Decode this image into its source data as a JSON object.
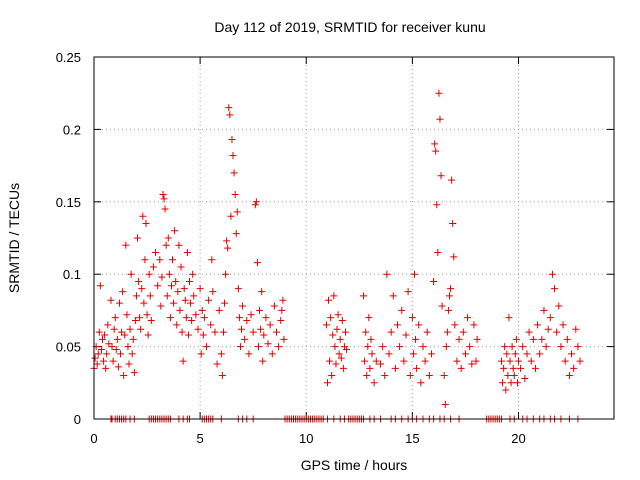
{
  "chart_data": {
    "type": "scatter",
    "title": "Day 112 of 2019, SRMTID for receiver kunu",
    "xlabel": "GPS time / hours",
    "ylabel": "SRMTID / TECUs",
    "xlim": [
      0,
      24.5
    ],
    "ylim": [
      0,
      0.25
    ],
    "xticks": [
      0,
      5,
      10,
      15,
      20
    ],
    "xtick_labels": [
      "0",
      "5",
      "10",
      "15",
      "20"
    ],
    "yticks": [
      0,
      0.05,
      0.1,
      0.15,
      0.2,
      0.25
    ],
    "ytick_labels": [
      "0",
      "0.05",
      "0.1",
      "0.15",
      "0.2",
      "0.25"
    ],
    "grid": true,
    "marker": "+",
    "color": "#e00000",
    "series": [
      {
        "name": "SRMTID",
        "points": [
          [
            0.0,
            0.035
          ],
          [
            0.05,
            0.042
          ],
          [
            0.1,
            0.05
          ],
          [
            0.15,
            0.038
          ],
          [
            0.2,
            0.045
          ],
          [
            0.25,
            0.06
          ],
          [
            0.3,
            0.092
          ],
          [
            0.35,
            0.048
          ],
          [
            0.4,
            0.055
          ],
          [
            0.45,
            0.04
          ],
          [
            0.5,
            0.058
          ],
          [
            0.55,
            0.035
          ],
          [
            0.6,
            0.045
          ],
          [
            0.65,
            0.065
          ],
          [
            0.7,
            0.052
          ],
          [
            0.8,
            0.082
          ],
          [
            0.85,
            0.05
          ],
          [
            0.9,
            0.04
          ],
          [
            0.95,
            0.062
          ],
          [
            1.0,
            0.07
          ],
          [
            1.05,
            0.048
          ],
          [
            1.1,
            0.055
          ],
          [
            1.15,
            0.036
          ],
          [
            1.2,
            0.08
          ],
          [
            1.25,
            0.045
          ],
          [
            1.3,
            0.06
          ],
          [
            1.35,
            0.088
          ],
          [
            1.4,
            0.03
          ],
          [
            1.45,
            0.058
          ],
          [
            1.5,
            0.12
          ],
          [
            1.55,
            0.072
          ],
          [
            1.6,
            0.05
          ],
          [
            1.65,
            0.038
          ],
          [
            1.7,
            0.062
          ],
          [
            1.75,
            0.1
          ],
          [
            1.8,
            0.045
          ],
          [
            1.85,
            0.055
          ],
          [
            1.9,
            0.032
          ],
          [
            1.95,
            0.068
          ],
          [
            2.0,
            0.085
          ],
          [
            2.05,
            0.125
          ],
          [
            2.1,
            0.095
          ],
          [
            2.15,
            0.07
          ],
          [
            2.2,
            0.062
          ],
          [
            2.25,
            0.09
          ],
          [
            2.3,
            0.14
          ],
          [
            2.35,
            0.08
          ],
          [
            2.4,
            0.11
          ],
          [
            2.45,
            0.135
          ],
          [
            2.5,
            0.072
          ],
          [
            2.55,
            0.058
          ],
          [
            2.6,
            0.1
          ],
          [
            2.65,
            0.085
          ],
          [
            2.7,
            0.068
          ],
          [
            2.8,
            0.105
          ],
          [
            2.9,
            0.115
          ],
          [
            3.0,
            0.092
          ],
          [
            3.1,
            0.11
          ],
          [
            3.15,
            0.078
          ],
          [
            3.2,
            0.098
          ],
          [
            3.25,
            0.155
          ],
          [
            3.3,
            0.152
          ],
          [
            3.35,
            0.145
          ],
          [
            3.4,
            0.12
          ],
          [
            3.45,
            0.085
          ],
          [
            3.5,
            0.125
          ],
          [
            3.55,
            0.1
          ],
          [
            3.6,
            0.07
          ],
          [
            3.65,
            0.092
          ],
          [
            3.7,
            0.11
          ],
          [
            3.75,
            0.08
          ],
          [
            3.8,
            0.13
          ],
          [
            3.85,
            0.095
          ],
          [
            3.9,
            0.065
          ],
          [
            3.95,
            0.088
          ],
          [
            4.0,
            0.12
          ],
          [
            4.05,
            0.075
          ],
          [
            4.1,
            0.105
          ],
          [
            4.15,
            0.06
          ],
          [
            4.2,
            0.04
          ],
          [
            4.25,
            0.09
          ],
          [
            4.3,
            0.082
          ],
          [
            4.35,
            0.07
          ],
          [
            4.4,
            0.115
          ],
          [
            4.45,
            0.058
          ],
          [
            4.5,
            0.095
          ],
          [
            4.55,
            0.08
          ],
          [
            4.6,
            0.068
          ],
          [
            4.65,
            0.1
          ],
          [
            4.7,
            0.085
          ],
          [
            4.8,
            0.072
          ],
          [
            4.9,
            0.062
          ],
          [
            5.0,
            0.09
          ],
          [
            5.05,
            0.045
          ],
          [
            5.1,
            0.075
          ],
          [
            5.15,
            0.058
          ],
          [
            5.2,
            0.07
          ],
          [
            5.3,
            0.05
          ],
          [
            5.4,
            0.082
          ],
          [
            5.5,
            0.065
          ],
          [
            5.55,
            0.11
          ],
          [
            5.6,
            0.088
          ],
          [
            5.7,
            0.06
          ],
          [
            5.8,
            0.038
          ],
          [
            5.9,
            0.075
          ],
          [
            6.0,
            0.045
          ],
          [
            6.05,
            0.03
          ],
          [
            6.1,
            0.06
          ],
          [
            6.15,
            0.08
          ],
          [
            6.2,
            0.1
          ],
          [
            6.25,
            0.123
          ],
          [
            6.3,
            0.118
          ],
          [
            6.35,
            0.215
          ],
          [
            6.4,
            0.21
          ],
          [
            6.45,
            0.14
          ],
          [
            6.5,
            0.193
          ],
          [
            6.55,
            0.182
          ],
          [
            6.6,
            0.17
          ],
          [
            6.65,
            0.155
          ],
          [
            6.7,
            0.128
          ],
          [
            6.75,
            0.143
          ],
          [
            6.8,
            0.09
          ],
          [
            6.85,
            0.07
          ],
          [
            6.9,
            0.05
          ],
          [
            6.95,
            0.062
          ],
          [
            7.0,
            0.078
          ],
          [
            7.1,
            0.055
          ],
          [
            7.2,
            0.068
          ],
          [
            7.3,
            0.045
          ],
          [
            7.4,
            0.072
          ],
          [
            7.5,
            0.06
          ],
          [
            7.6,
            0.148
          ],
          [
            7.65,
            0.15
          ],
          [
            7.7,
            0.108
          ],
          [
            7.75,
            0.05
          ],
          [
            7.8,
            0.075
          ],
          [
            7.85,
            0.062
          ],
          [
            7.9,
            0.088
          ],
          [
            7.95,
            0.04
          ],
          [
            8.0,
            0.058
          ],
          [
            8.1,
            0.07
          ],
          [
            8.2,
            0.052
          ],
          [
            8.3,
            0.065
          ],
          [
            8.4,
            0.045
          ],
          [
            8.5,
            0.078
          ],
          [
            8.6,
            0.06
          ],
          [
            8.7,
            0.05
          ],
          [
            8.8,
            0.068
          ],
          [
            8.85,
            0.075
          ],
          [
            8.9,
            0.082
          ],
          [
            8.95,
            0.055
          ],
          [
            10.95,
            0.065
          ],
          [
            11.0,
            0.025
          ],
          [
            11.05,
            0.082
          ],
          [
            11.1,
            0.04
          ],
          [
            11.15,
            0.07
          ],
          [
            11.2,
            0.03
          ],
          [
            11.25,
            0.058
          ],
          [
            11.3,
            0.085
          ],
          [
            11.35,
            0.05
          ],
          [
            11.4,
            0.038
          ],
          [
            11.45,
            0.062
          ],
          [
            11.5,
            0.072
          ],
          [
            11.55,
            0.045
          ],
          [
            11.6,
            0.055
          ],
          [
            11.65,
            0.042
          ],
          [
            11.7,
            0.068
          ],
          [
            11.75,
            0.035
          ],
          [
            11.8,
            0.05
          ],
          [
            11.85,
            0.06
          ],
          [
            11.9,
            0.048
          ],
          [
            12.7,
            0.085
          ],
          [
            12.75,
            0.04
          ],
          [
            12.8,
            0.06
          ],
          [
            12.85,
            0.03
          ],
          [
            12.9,
            0.05
          ],
          [
            12.95,
            0.07
          ],
          [
            13.0,
            0.035
          ],
          [
            13.05,
            0.055
          ],
          [
            13.1,
            0.045
          ],
          [
            13.2,
            0.025
          ],
          [
            13.3,
            0.04
          ],
          [
            13.5,
            0.038
          ],
          [
            13.6,
            0.05
          ],
          [
            13.7,
            0.03
          ],
          [
            13.8,
            0.1
          ],
          [
            13.9,
            0.045
          ],
          [
            14.0,
            0.06
          ],
          [
            14.1,
            0.085
          ],
          [
            14.2,
            0.035
          ],
          [
            14.3,
            0.065
          ],
          [
            14.4,
            0.05
          ],
          [
            14.5,
            0.075
          ],
          [
            14.6,
            0.04
          ],
          [
            14.7,
            0.058
          ],
          [
            14.8,
            0.088
          ],
          [
            14.9,
            0.03
          ],
          [
            15.0,
            0.07
          ],
          [
            15.05,
            0.045
          ],
          [
            15.1,
            0.1
          ],
          [
            15.15,
            0.055
          ],
          [
            15.2,
            0.035
          ],
          [
            15.3,
            0.065
          ],
          [
            15.4,
            0.025
          ],
          [
            15.5,
            0.05
          ],
          [
            15.6,
            0.04
          ],
          [
            15.7,
            0.06
          ],
          [
            15.8,
            0.03
          ],
          [
            15.9,
            0.045
          ],
          [
            16.0,
            0.095
          ],
          [
            16.05,
            0.19
          ],
          [
            16.1,
            0.185
          ],
          [
            16.15,
            0.148
          ],
          [
            16.2,
            0.115
          ],
          [
            16.25,
            0.225
          ],
          [
            16.3,
            0.207
          ],
          [
            16.35,
            0.168
          ],
          [
            16.4,
            0.078
          ],
          [
            16.5,
            0.03
          ],
          [
            16.55,
            0.01
          ],
          [
            16.6,
            0.05
          ],
          [
            16.65,
            0.06
          ],
          [
            16.7,
            0.075
          ],
          [
            16.75,
            0.085
          ],
          [
            16.8,
            0.09
          ],
          [
            16.85,
            0.165
          ],
          [
            16.9,
            0.135
          ],
          [
            16.95,
            0.112
          ],
          [
            17.0,
            0.065
          ],
          [
            17.1,
            0.04
          ],
          [
            17.2,
            0.055
          ],
          [
            17.3,
            0.035
          ],
          [
            17.4,
            0.06
          ],
          [
            17.5,
            0.045
          ],
          [
            17.6,
            0.07
          ],
          [
            17.7,
            0.05
          ],
          [
            17.8,
            0.038
          ],
          [
            17.9,
            0.065
          ],
          [
            18.0,
            0.04
          ],
          [
            18.05,
            0.055
          ],
          [
            19.2,
            0.04
          ],
          [
            19.25,
            0.025
          ],
          [
            19.3,
            0.035
          ],
          [
            19.35,
            0.05
          ],
          [
            19.4,
            0.02
          ],
          [
            19.45,
            0.045
          ],
          [
            19.5,
            0.03
          ],
          [
            19.55,
            0.07
          ],
          [
            19.6,
            0.04
          ],
          [
            19.65,
            0.025
          ],
          [
            19.7,
            0.05
          ],
          [
            19.75,
            0.035
          ],
          [
            19.8,
            0.03
          ],
          [
            19.85,
            0.045
          ],
          [
            19.9,
            0.055
          ],
          [
            19.95,
            0.025
          ],
          [
            20.0,
            0.04
          ],
          [
            20.1,
            0.035
          ],
          [
            20.2,
            0.05
          ],
          [
            20.3,
            0.028
          ],
          [
            20.4,
            0.045
          ],
          [
            20.5,
            0.06
          ],
          [
            20.6,
            0.04
          ],
          [
            20.7,
            0.055
          ],
          [
            20.8,
            0.035
          ],
          [
            20.9,
            0.065
          ],
          [
            21.0,
            0.045
          ],
          [
            21.1,
            0.055
          ],
          [
            21.2,
            0.075
          ],
          [
            21.3,
            0.05
          ],
          [
            21.4,
            0.062
          ],
          [
            21.5,
            0.07
          ],
          [
            21.6,
            0.1
          ],
          [
            21.7,
            0.09
          ],
          [
            21.8,
            0.06
          ],
          [
            21.9,
            0.078
          ],
          [
            22.0,
            0.05
          ],
          [
            22.1,
            0.065
          ],
          [
            22.2,
            0.04
          ],
          [
            22.3,
            0.055
          ],
          [
            22.4,
            0.03
          ],
          [
            22.5,
            0.045
          ],
          [
            22.6,
            0.035
          ],
          [
            22.7,
            0.062
          ],
          [
            22.8,
            0.05
          ],
          [
            22.9,
            0.04
          ]
        ],
        "zero_values_at_hours": [
          0.8,
          0.85,
          1.0,
          1.1,
          1.2,
          1.3,
          1.4,
          1.5,
          1.7,
          1.9,
          2.6,
          2.7,
          2.8,
          2.9,
          3.0,
          3.1,
          3.2,
          3.3,
          3.4,
          3.5,
          3.6,
          4.0,
          4.2,
          4.4,
          4.5,
          5.1,
          5.2,
          5.3,
          5.4,
          5.5,
          5.6,
          6.0,
          6.8,
          7.0,
          7.2,
          7.5,
          9.0,
          9.1,
          9.2,
          9.3,
          9.4,
          9.5,
          9.6,
          9.7,
          9.8,
          9.9,
          10.0,
          10.1,
          10.2,
          10.3,
          10.4,
          10.5,
          10.6,
          10.7,
          10.8,
          11.0,
          11.3,
          11.6,
          11.8,
          12.0,
          12.1,
          12.2,
          12.3,
          12.4,
          12.5,
          12.6,
          12.7,
          13.0,
          13.2,
          13.5,
          14.0,
          14.2,
          14.5,
          14.8,
          15.0,
          15.2,
          15.5,
          15.8,
          16.0,
          16.3,
          16.5,
          16.8,
          17.2,
          18.5,
          18.6,
          18.7,
          18.8,
          18.9,
          19.0,
          19.1,
          19.2,
          19.6,
          19.8,
          20.2,
          20.4,
          20.7,
          21.0,
          21.2,
          21.5,
          21.7,
          22.0,
          22.4,
          22.8
        ]
      }
    ]
  }
}
